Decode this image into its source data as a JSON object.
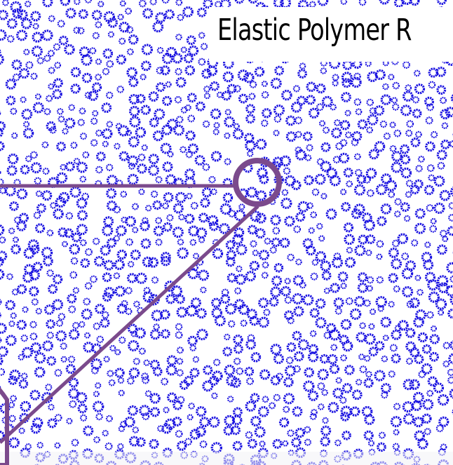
{
  "title": "Elastic Polymer R",
  "colors": {
    "particle": "#1a12e0",
    "magnifier": "#7b4a8c",
    "background": "#ffffff",
    "title_text": "#000000"
  },
  "icons": {
    "particle": "flower-ring-icon",
    "magnifier": "magnifier-circle-icon"
  }
}
